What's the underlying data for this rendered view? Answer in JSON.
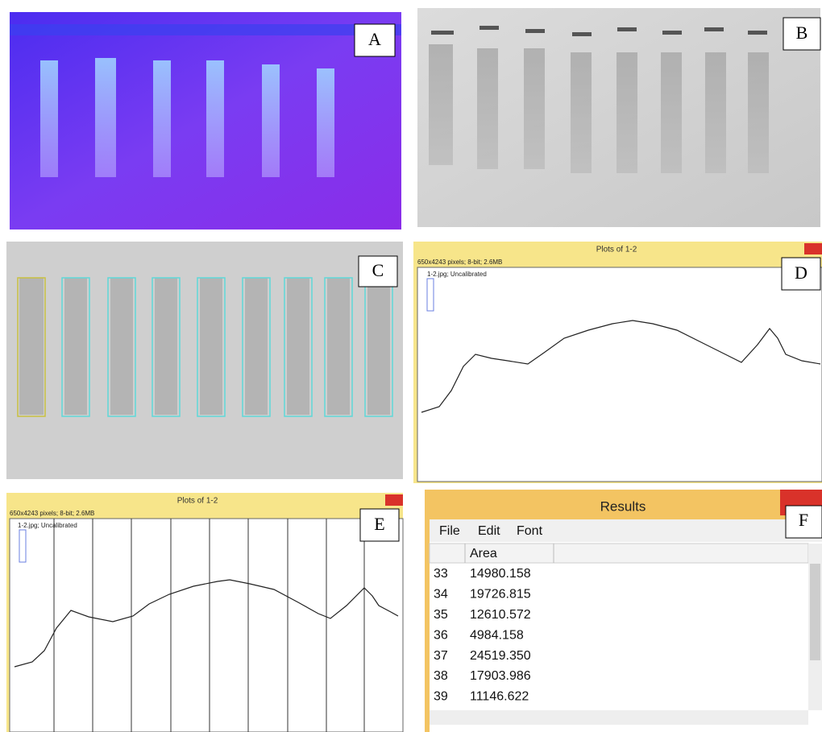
{
  "panel_labels": [
    "A",
    "B",
    "C",
    "D",
    "E",
    "F"
  ],
  "plot_d": {
    "title": "Plots of 1-2",
    "info": "650x4243 pixels; 8-bit; 2.6MB",
    "image_name": "1-2.jpg; Uncalibrated"
  },
  "plot_e": {
    "title": "Plots of 1-2",
    "info": "650x4243 pixels; 8-bit; 2.6MB",
    "image_name": "1-2.jpg; Uncalibrated"
  },
  "results": {
    "title": "Results",
    "menu": [
      "File",
      "Edit",
      "Font"
    ],
    "column": "Area",
    "rows": [
      [
        "33",
        "14980.158"
      ],
      [
        "34",
        "19726.815"
      ],
      [
        "35",
        "12610.572"
      ],
      [
        "36",
        "4984.158"
      ],
      [
        "37",
        "24519.350"
      ],
      [
        "38",
        "17903.986"
      ],
      [
        "39",
        "11146.622"
      ]
    ]
  }
}
